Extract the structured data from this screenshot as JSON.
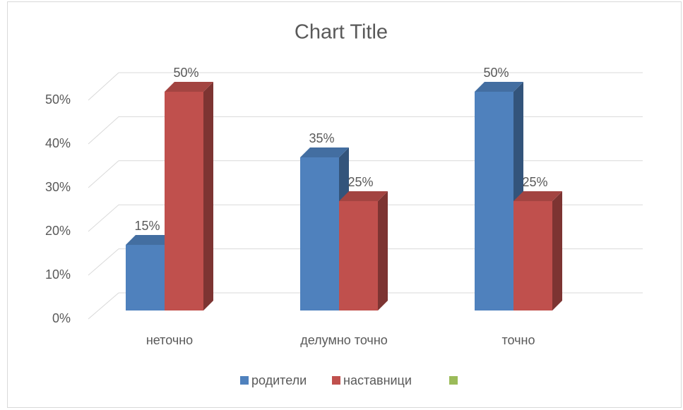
{
  "chart_data": {
    "type": "bar3d",
    "title": "Chart Title",
    "categories": [
      "неточно",
      "делумно точно",
      "точно"
    ],
    "series": [
      {
        "name": "родители",
        "color": "#4f81bd",
        "values": [
          15,
          35,
          50
        ],
        "value_labels": [
          "15%",
          "35%",
          "50%"
        ]
      },
      {
        "name": "наставници",
        "color": "#c0504d",
        "values": [
          50,
          25,
          25
        ],
        "value_labels": [
          "50%",
          "25%",
          "25%"
        ]
      },
      {
        "color": "#9bbb59",
        "values": [
          null,
          null,
          null
        ]
      }
    ],
    "ylim": [
      0,
      50
    ],
    "yticks": [
      {
        "value": 0,
        "label": "0%"
      },
      {
        "value": 10,
        "label": "10%"
      },
      {
        "value": 20,
        "label": "20%"
      },
      {
        "value": 30,
        "label": "30%"
      },
      {
        "value": 40,
        "label": "40%"
      },
      {
        "value": 50,
        "label": "50%"
      }
    ],
    "grid": true,
    "legend": "bottom"
  }
}
